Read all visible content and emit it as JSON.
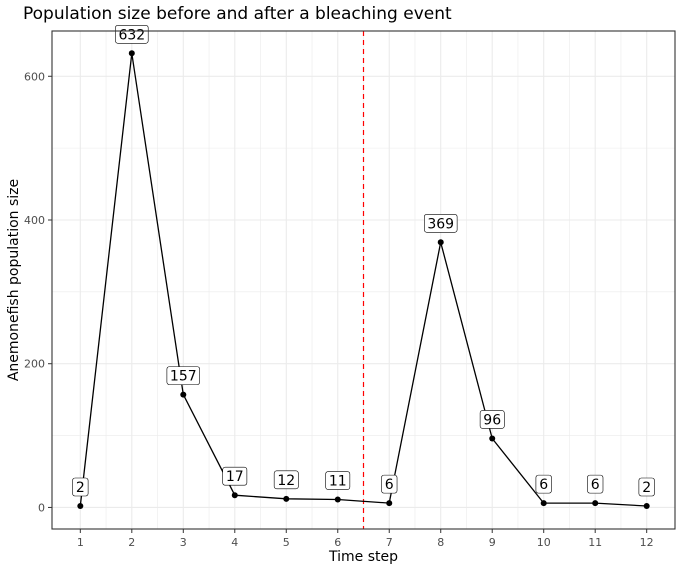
{
  "chart_data": {
    "type": "line",
    "title": "Population size before and after a bleaching event",
    "xlabel": "Time step",
    "ylabel": "Anemonefish population size",
    "x": [
      1,
      2,
      3,
      4,
      5,
      6,
      7,
      8,
      9,
      10,
      11,
      12
    ],
    "values": [
      2,
      632,
      157,
      17,
      12,
      11,
      6,
      369,
      96,
      6,
      6,
      2
    ],
    "x_ticks": [
      "1",
      "2",
      "3",
      "4",
      "5",
      "6",
      "7",
      "8",
      "9",
      "10",
      "11",
      "12"
    ],
    "y_ticks": [
      "0",
      "200",
      "400",
      "600"
    ],
    "xlim": [
      0.45,
      12.55
    ],
    "ylim": [
      -30,
      663
    ],
    "vline": {
      "x": 6.5,
      "color": "#ff0000",
      "style": "dashed"
    },
    "grid": true,
    "line_color": "#000000",
    "panel_border": "#333333",
    "grid_color": "#ebebeb"
  }
}
